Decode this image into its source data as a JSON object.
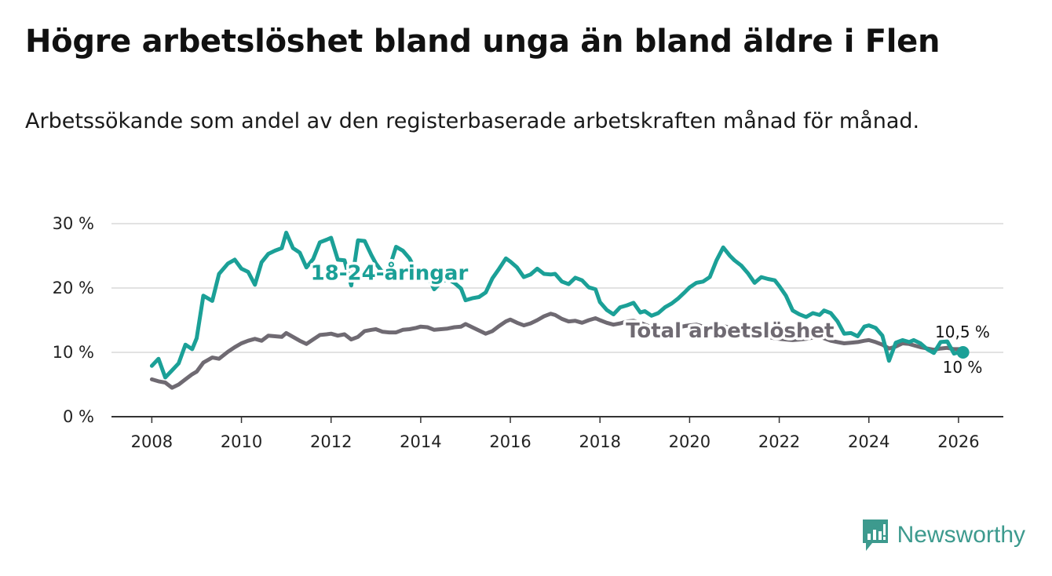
{
  "title": "Högre arbetslöshet bland unga än bland äldre i Flen",
  "subtitle": "Arbetssökande som andel av den registerbaserade arbetskraften månad för månad.",
  "brand": {
    "name": "Newsworthy",
    "icon": "newsworthy-logo-icon"
  },
  "colors": {
    "youth": "#1ba097",
    "total": "#6f6a72",
    "grid": "#d9d9d9",
    "axis": "#333333"
  },
  "chart_data": {
    "type": "line",
    "xlim": [
      2007.1,
      2027
    ],
    "ylim": [
      0,
      30
    ],
    "x_ticks": [
      2008,
      2010,
      2012,
      2014,
      2016,
      2018,
      2020,
      2022,
      2024,
      2026
    ],
    "y_ticks": [
      0,
      10,
      20,
      30
    ],
    "y_tick_labels": [
      "0 %",
      "10 %",
      "20 %",
      "30 %"
    ],
    "series": [
      {
        "name": "18-24-åringar",
        "color": "#1ba097",
        "x": [
          2008.0,
          2008.15,
          2008.3,
          2008.45,
          2008.6,
          2008.75,
          2008.9,
          2009.0,
          2009.15,
          2009.35,
          2009.5,
          2009.7,
          2009.85,
          2010.0,
          2010.15,
          2010.3,
          2010.45,
          2010.6,
          2010.75,
          2010.9,
          2011.0,
          2011.15,
          2011.3,
          2011.45,
          2011.6,
          2011.75,
          2011.9,
          2012.0,
          2012.15,
          2012.3,
          2012.45,
          2012.6,
          2012.75,
          2012.9,
          2013.0,
          2013.15,
          2013.3,
          2013.45,
          2013.6,
          2013.75,
          2013.9,
          2014.0,
          2014.15,
          2014.3,
          2014.45,
          2014.6,
          2014.75,
          2014.9,
          2015.0,
          2015.15,
          2015.3,
          2015.45,
          2015.6,
          2015.75,
          2015.9,
          2016.0,
          2016.15,
          2016.3,
          2016.45,
          2016.6,
          2016.75,
          2016.9,
          2017.0,
          2017.15,
          2017.3,
          2017.45,
          2017.6,
          2017.75,
          2017.9,
          2018.0,
          2018.15,
          2018.3,
          2018.45,
          2018.6,
          2018.75,
          2018.9,
          2019.0,
          2019.15,
          2019.3,
          2019.45,
          2019.6,
          2019.75,
          2019.9,
          2020.0,
          2020.15,
          2020.3,
          2020.45,
          2020.6,
          2020.75,
          2020.9,
          2021.0,
          2021.15,
          2021.3,
          2021.45,
          2021.6,
          2021.75,
          2021.9,
          2022.0,
          2022.15,
          2022.3,
          2022.45,
          2022.6,
          2022.75,
          2022.9,
          2023.0,
          2023.15,
          2023.3,
          2023.45,
          2023.6,
          2023.75,
          2023.9,
          2024.0,
          2024.15,
          2024.3,
          2024.45,
          2024.6,
          2024.75,
          2024.9,
          2025.0,
          2025.15,
          2025.3,
          2025.45,
          2025.6,
          2025.75,
          2025.9,
          2026.0,
          2026.1
        ],
        "values": [
          7.9,
          9.0,
          6.1,
          7.2,
          8.3,
          11.2,
          10.5,
          12.2,
          18.8,
          18.0,
          22.2,
          23.8,
          24.4,
          23.0,
          22.5,
          20.5,
          24.0,
          25.3,
          25.8,
          26.2,
          28.6,
          26.2,
          25.5,
          23.2,
          24.5,
          27.1,
          27.5,
          27.8,
          24.4,
          24.3,
          20.4,
          27.4,
          27.3,
          25.1,
          23.8,
          22.4,
          23.1,
          26.4,
          25.8,
          24.6,
          22.6,
          22.5,
          22.0,
          19.8,
          20.9,
          21.4,
          20.8,
          19.9,
          18.1,
          18.4,
          18.6,
          19.3,
          21.5,
          23.0,
          24.6,
          24.1,
          23.2,
          21.7,
          22.1,
          23.0,
          22.2,
          22.1,
          22.2,
          21.0,
          20.6,
          21.6,
          21.2,
          20.1,
          19.8,
          17.8,
          16.6,
          15.9,
          17.0,
          17.3,
          17.7,
          16.2,
          16.4,
          15.7,
          16.1,
          17.0,
          17.6,
          18.4,
          19.4,
          20.1,
          20.8,
          21.0,
          21.7,
          24.3,
          26.3,
          25.0,
          24.3,
          23.5,
          22.3,
          20.8,
          21.7,
          21.4,
          21.2,
          20.3,
          18.8,
          16.5,
          15.9,
          15.5,
          16.1,
          15.8,
          16.5,
          16.1,
          14.8,
          12.9,
          13.0,
          12.5,
          14.0,
          14.2,
          13.8,
          12.6,
          8.7,
          11.5,
          11.9,
          11.6,
          11.9,
          11.4,
          10.5,
          9.9,
          11.6,
          11.7,
          9.8,
          10.0,
          10.0
        ]
      },
      {
        "name": "Total arbetslöshet",
        "color": "#6f6a72",
        "x": [
          2008.0,
          2008.15,
          2008.3,
          2008.45,
          2008.6,
          2008.75,
          2008.9,
          2009.0,
          2009.15,
          2009.35,
          2009.5,
          2009.7,
          2009.85,
          2010.0,
          2010.15,
          2010.3,
          2010.45,
          2010.6,
          2010.75,
          2010.9,
          2011.0,
          2011.15,
          2011.3,
          2011.45,
          2011.6,
          2011.75,
          2011.9,
          2012.0,
          2012.15,
          2012.3,
          2012.45,
          2012.6,
          2012.75,
          2012.9,
          2013.0,
          2013.15,
          2013.3,
          2013.45,
          2013.6,
          2013.75,
          2013.9,
          2014.0,
          2014.15,
          2014.3,
          2014.45,
          2014.6,
          2014.75,
          2014.9,
          2015.0,
          2015.15,
          2015.3,
          2015.45,
          2015.6,
          2015.75,
          2015.9,
          2016.0,
          2016.15,
          2016.3,
          2016.45,
          2016.6,
          2016.75,
          2016.9,
          2017.0,
          2017.15,
          2017.3,
          2017.45,
          2017.6,
          2017.75,
          2017.9,
          2018.0,
          2018.15,
          2018.3,
          2018.45,
          2018.6,
          2018.75,
          2018.9,
          2019.0,
          2019.15,
          2019.3,
          2019.45,
          2019.6,
          2019.75,
          2019.9,
          2020.0,
          2020.15,
          2020.3,
          2020.45,
          2020.6,
          2020.75,
          2020.9,
          2021.0,
          2021.15,
          2021.3,
          2021.45,
          2021.6,
          2021.75,
          2021.9,
          2022.0,
          2022.15,
          2022.3,
          2022.45,
          2022.6,
          2022.75,
          2022.9,
          2023.0,
          2023.15,
          2023.3,
          2023.45,
          2023.6,
          2023.75,
          2023.9,
          2024.0,
          2024.15,
          2024.3,
          2024.45,
          2024.6,
          2024.75,
          2024.9,
          2025.0,
          2025.15,
          2025.3,
          2025.45,
          2025.6,
          2025.75,
          2025.9,
          2026.0,
          2026.1
        ],
        "values": [
          5.8,
          5.5,
          5.3,
          4.5,
          5.0,
          5.8,
          6.6,
          7.0,
          8.4,
          9.2,
          9.0,
          10.1,
          10.8,
          11.4,
          11.8,
          12.1,
          11.8,
          12.6,
          12.5,
          12.4,
          13.0,
          12.4,
          11.8,
          11.3,
          12.0,
          12.7,
          12.8,
          12.9,
          12.6,
          12.8,
          12.0,
          12.4,
          13.3,
          13.5,
          13.6,
          13.2,
          13.1,
          13.1,
          13.5,
          13.6,
          13.8,
          14.0,
          13.9,
          13.5,
          13.6,
          13.7,
          13.9,
          14.0,
          14.4,
          13.9,
          13.4,
          12.9,
          13.3,
          14.1,
          14.8,
          15.1,
          14.6,
          14.2,
          14.5,
          15.0,
          15.6,
          16.0,
          15.8,
          15.2,
          14.8,
          14.9,
          14.6,
          15.0,
          15.3,
          15.0,
          14.6,
          14.3,
          14.5,
          14.8,
          14.9,
          14.6,
          14.3,
          13.9,
          13.8,
          13.6,
          13.7,
          13.9,
          14.1,
          14.2,
          14.3,
          14.0,
          13.8,
          13.9,
          14.1,
          13.8,
          13.6,
          13.2,
          12.9,
          12.8,
          12.6,
          12.4,
          12.2,
          12.1,
          12.0,
          11.9,
          12.0,
          12.1,
          12.3,
          12.4,
          12.2,
          11.8,
          11.6,
          11.4,
          11.5,
          11.6,
          11.8,
          11.9,
          11.6,
          11.2,
          10.6,
          10.9,
          11.4,
          11.3,
          11.1,
          10.8,
          10.6,
          10.4,
          10.6,
          10.7,
          10.5,
          10.5,
          10.5
        ]
      }
    ],
    "series_labels": [
      {
        "text": "18-24-åringar",
        "series": 0
      },
      {
        "text": "Total arbetslöshet",
        "series": 1
      }
    ],
    "end_labels": [
      {
        "text": "10,5 %",
        "series": 1
      },
      {
        "text": "10 %",
        "series": 0
      }
    ]
  }
}
